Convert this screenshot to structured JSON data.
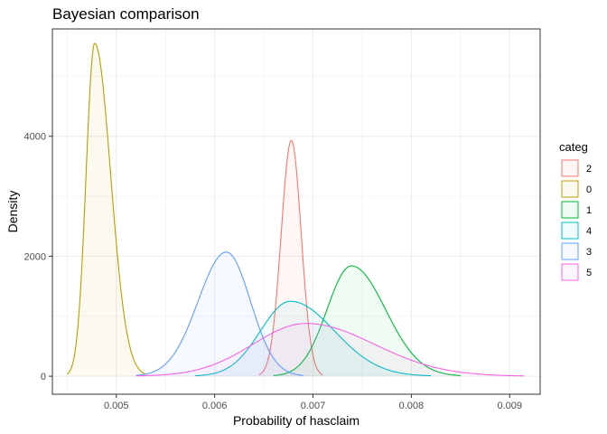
{
  "chart_data": {
    "type": "area",
    "title": "Bayesian comparison",
    "xlabel": "Probability of hasclaim",
    "ylabel": "Density",
    "xlim": [
      0.00435,
      0.00931
    ],
    "ylim": [
      -300,
      5790
    ],
    "x_ticks": [
      0.005,
      0.006,
      0.007,
      0.008,
      0.009
    ],
    "x_tick_labels": [
      "0.005",
      "0.006",
      "0.007",
      "0.008",
      "0.009"
    ],
    "y_ticks": [
      0,
      2000,
      4000
    ],
    "y_tick_labels": [
      "0",
      "2000",
      "4000"
    ],
    "grid": true,
    "legend": {
      "title": "categ",
      "placement": "right"
    },
    "series": [
      {
        "name": "2",
        "color": "#F8766D",
        "peak_x": 0.00678,
        "peak_density": 3930,
        "x_range": [
          0.00645,
          0.0071
        ]
      },
      {
        "name": "0",
        "color": "#B79F00",
        "peak_x": 0.00478,
        "peak_density": 5550,
        "x_range": [
          0.0045,
          0.0053
        ]
      },
      {
        "name": "1",
        "color": "#00BA38",
        "peak_x": 0.00739,
        "peak_density": 1840,
        "x_range": [
          0.0066,
          0.0085
        ]
      },
      {
        "name": "4",
        "color": "#00BFC4",
        "peak_x": 0.00677,
        "peak_density": 1250,
        "x_range": [
          0.0058,
          0.0082
        ]
      },
      {
        "name": "3",
        "color": "#619CFF",
        "peak_x": 0.00612,
        "peak_density": 2070,
        "x_range": [
          0.0052,
          0.0069
        ]
      },
      {
        "name": "5",
        "color": "#F564E3",
        "peak_x": 0.00693,
        "peak_density": 880,
        "x_range": [
          0.0052,
          0.00915
        ]
      }
    ]
  }
}
